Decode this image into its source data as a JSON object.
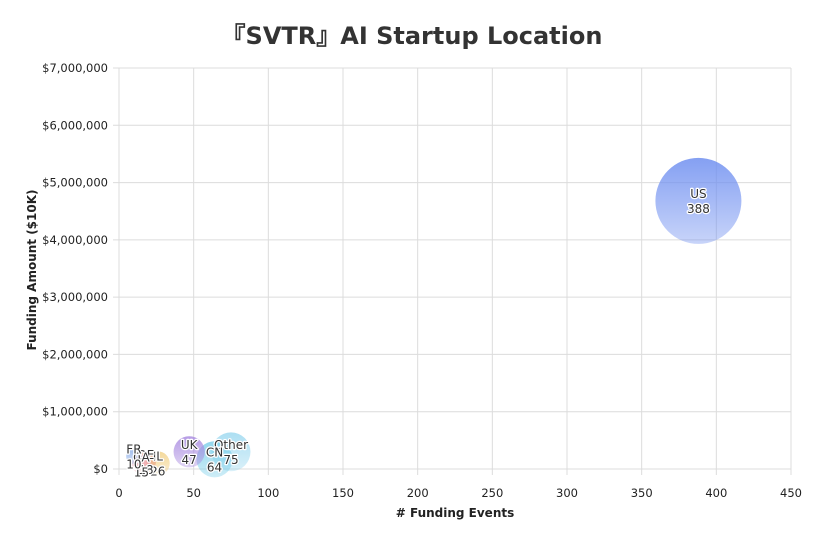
{
  "chart_data": {
    "type": "scatter",
    "title": "『SVTR』AI Startup Location",
    "xlabel": "# Funding Events",
    "ylabel": "Funding Amount ($10K)",
    "xlim": [
      0,
      450
    ],
    "ylim": [
      0,
      7000000
    ],
    "x_ticks": [
      0,
      50,
      100,
      150,
      200,
      250,
      300,
      350,
      400,
      450
    ],
    "y_ticks": [
      0,
      1000000,
      2000000,
      3000000,
      4000000,
      5000000,
      6000000,
      7000000
    ],
    "y_tick_labels": [
      "$0",
      "$1,000,000",
      "$2,000,000",
      "$3,000,000",
      "$4,000,000",
      "$5,000,000",
      "$6,000,000",
      "$7,000,000"
    ],
    "grid": true,
    "legend": "none",
    "points": [
      {
        "label": "US",
        "x": 388,
        "y": 4680000,
        "color": "#6f8ff0"
      },
      {
        "label": "Other",
        "x": 75,
        "y": 300000,
        "color": "#9ed9f0"
      },
      {
        "label": "CN",
        "x": 64,
        "y": 170000,
        "color": "#7fd0ea"
      },
      {
        "label": "UK",
        "x": 47,
        "y": 300000,
        "color": "#a98be0"
      },
      {
        "label": "IL",
        "x": 26,
        "y": 100000,
        "color": "#f2d28a"
      },
      {
        "label": "DE",
        "x": 18,
        "y": 120000,
        "color": "#e79a7a"
      },
      {
        "label": "CA",
        "x": 15,
        "y": 80000,
        "color": "#f0a8b8"
      },
      {
        "label": "FR",
        "x": 10,
        "y": 220000,
        "color": "#8fb0e8"
      }
    ]
  }
}
